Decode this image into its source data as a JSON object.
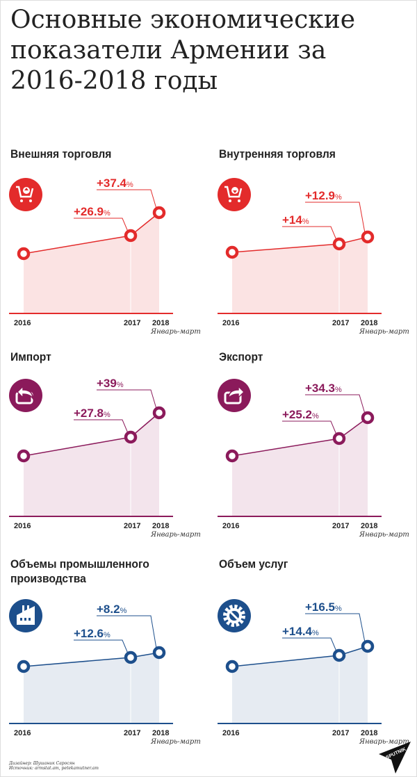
{
  "title": "Основные экономические показатели Армении за 2016-2018 годы",
  "colors": {
    "red": "#e32b2b",
    "purple": "#8b1a5b",
    "blue": "#1d4f8c"
  },
  "chart_data": [
    {
      "type": "line",
      "title": "Внешняя торговля",
      "icon": "shopping-cart-up-icon",
      "color": "#e32b2b",
      "fill": "#fbe3e3",
      "categories": [
        "2016",
        "2017",
        "2018"
      ],
      "sublabel": "Январь-март",
      "labels": [
        "",
        "+26.9%",
        "+37.4%"
      ],
      "values": [
        null,
        26.9,
        37.4
      ]
    },
    {
      "type": "line",
      "title": "Внутренняя торговля",
      "icon": "shopping-cart-down-icon",
      "color": "#e32b2b",
      "fill": "#fbe3e3",
      "categories": [
        "2016",
        "2017",
        "2018"
      ],
      "sublabel": "Январь-март",
      "labels": [
        "",
        "+14%",
        "+12.9%"
      ],
      "values": [
        null,
        14,
        12.9
      ]
    },
    {
      "type": "line",
      "title": "Импорт",
      "icon": "import-arrow-icon",
      "color": "#8b1a5b",
      "fill": "#f3e4ec",
      "categories": [
        "2016",
        "2017",
        "2018"
      ],
      "sublabel": "Январь-март",
      "labels": [
        "",
        "+27.8%",
        "+39%"
      ],
      "values": [
        null,
        27.8,
        39
      ]
    },
    {
      "type": "line",
      "title": "Экспорт",
      "icon": "export-arrow-icon",
      "color": "#8b1a5b",
      "fill": "#f3e4ec",
      "categories": [
        "2016",
        "2017",
        "2018"
      ],
      "sublabel": "Январь-март",
      "labels": [
        "",
        "+25.2%",
        "+34.3%"
      ],
      "values": [
        null,
        25.2,
        34.3
      ]
    },
    {
      "type": "line",
      "title": "Объемы промышленного производства",
      "icon": "factory-icon",
      "color": "#1d4f8c",
      "fill": "#e6ebf2",
      "categories": [
        "2016",
        "2017",
        "2018"
      ],
      "sublabel": "Январь-март",
      "labels": [
        "",
        "+12.6%",
        "+8.2%"
      ],
      "values": [
        null,
        12.6,
        8.2
      ]
    },
    {
      "type": "line",
      "title": "Объем услуг",
      "icon": "gear-wrench-icon",
      "color": "#1d4f8c",
      "fill": "#e6ebf2",
      "categories": [
        "2016",
        "2017",
        "2018"
      ],
      "sublabel": "Январь-март",
      "labels": [
        "",
        "+14.4%",
        "+16.5%"
      ],
      "values": [
        null,
        14.4,
        16.5
      ]
    }
  ],
  "footer": {
    "designer": "Дизайнер: Шушаник Саросян",
    "source": "Источник: armstat.am, petekamutner.am"
  },
  "logo": "SPUTNIK"
}
